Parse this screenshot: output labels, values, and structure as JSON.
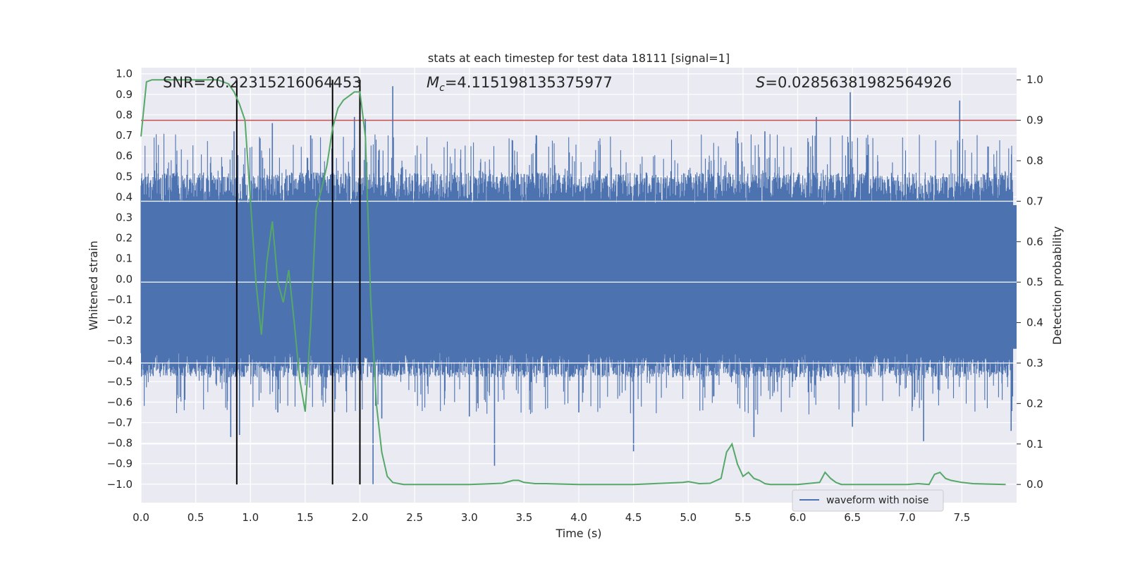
{
  "chart_data": {
    "type": "line",
    "title": "stats at each timestep for test data 18111 [signal=1]",
    "xlabel": "Time (s)",
    "ylabel": "Whitened strain",
    "y2label": "Detection probability",
    "xlim": [
      0.0,
      8.0
    ],
    "ylim": [
      -1.09,
      1.03
    ],
    "y2lim": [
      -0.045,
      1.03
    ],
    "xticks": [
      "0.0",
      "0.5",
      "1.0",
      "1.5",
      "2.0",
      "2.5",
      "3.0",
      "3.5",
      "4.0",
      "4.5",
      "5.0",
      "5.5",
      "6.0",
      "6.5",
      "7.0",
      "7.5"
    ],
    "yticks": [
      "1.0",
      "0.9",
      "0.8",
      "0.7",
      "0.6",
      "0.5",
      "0.4",
      "0.3",
      "0.2",
      "0.1",
      "0.0",
      "−0.1",
      "−0.2",
      "−0.3",
      "−0.4",
      "−0.5",
      "−0.6",
      "−0.7",
      "−0.8",
      "−0.9",
      "−1.0"
    ],
    "y2ticks": [
      "1.0",
      "0.9",
      "0.8",
      "0.7",
      "0.6",
      "0.5",
      "0.4",
      "0.3",
      "0.2",
      "0.1",
      "0.0"
    ],
    "grid": true,
    "legend": {
      "entries": [
        "waveform with noise"
      ],
      "placement": "lower-center-right"
    },
    "annotations": {
      "snr": "SNR=20.22315216064453",
      "mc_symbol": "M",
      "mc_sub": "c",
      "mc_value": "=4.115198135375977",
      "s_symbol": "S",
      "s_value": "=0.02856381982564926"
    },
    "threshold": {
      "value": 0.9,
      "axis": "right",
      "color": "#c44e52"
    },
    "vlines": [
      0.875,
      1.75,
      2.0
    ],
    "series": [
      {
        "name": "waveform with noise",
        "axis": "left",
        "color": "#4c72b0",
        "envelope": {
          "typical_amplitude": 0.36,
          "max_positive": 0.94,
          "min_negative": -1.0
        },
        "spikes": [
          {
            "x": 0.85,
            "y": 0.72
          },
          {
            "x": 0.82,
            "y": -0.77
          },
          {
            "x": 0.9,
            "y": -0.76
          },
          {
            "x": 1.2,
            "y": 0.76
          },
          {
            "x": 1.25,
            "y": -0.65
          },
          {
            "x": 1.55,
            "y": 0.7
          },
          {
            "x": 1.95,
            "y": 0.79
          },
          {
            "x": 2.05,
            "y": 0.78
          },
          {
            "x": 2.12,
            "y": -1.0
          },
          {
            "x": 2.3,
            "y": 0.94
          },
          {
            "x": 2.2,
            "y": -0.68
          },
          {
            "x": 3.23,
            "y": -0.91
          },
          {
            "x": 4.5,
            "y": -0.84
          },
          {
            "x": 5.45,
            "y": 0.72
          },
          {
            "x": 5.6,
            "y": -0.77
          },
          {
            "x": 5.7,
            "y": 0.72
          },
          {
            "x": 6.17,
            "y": 0.79
          },
          {
            "x": 6.48,
            "y": 0.91
          },
          {
            "x": 6.5,
            "y": -0.72
          },
          {
            "x": 7.15,
            "y": -0.79
          },
          {
            "x": 7.48,
            "y": 0.87
          },
          {
            "x": 7.95,
            "y": -0.74
          },
          {
            "x": 3.0,
            "y": -0.67
          },
          {
            "x": 4.0,
            "y": -0.65
          }
        ]
      },
      {
        "name": "",
        "axis": "right",
        "color": "#55a868",
        "x": [
          0.0,
          0.05,
          0.1,
          0.2,
          0.3,
          0.4,
          0.5,
          0.6,
          0.7,
          0.8,
          0.85,
          0.9,
          0.95,
          1.0,
          1.05,
          1.1,
          1.15,
          1.2,
          1.25,
          1.3,
          1.35,
          1.4,
          1.45,
          1.5,
          1.55,
          1.6,
          1.65,
          1.7,
          1.75,
          1.8,
          1.85,
          1.9,
          1.95,
          2.0,
          2.05,
          2.1,
          2.15,
          2.2,
          2.25,
          2.3,
          2.4,
          2.5,
          3.0,
          3.3,
          3.4,
          3.45,
          3.5,
          3.6,
          3.7,
          4.0,
          4.5,
          4.95,
          5.0,
          5.1,
          5.2,
          5.3,
          5.35,
          5.4,
          5.45,
          5.5,
          5.55,
          5.6,
          5.65,
          5.7,
          5.75,
          6.0,
          6.2,
          6.25,
          6.3,
          6.35,
          6.4,
          6.6,
          7.0,
          7.1,
          7.2,
          7.25,
          7.3,
          7.35,
          7.4,
          7.5,
          7.6,
          7.9
        ],
        "y": [
          0.86,
          0.995,
          1.0,
          1.0,
          1.0,
          1.0,
          1.0,
          1.0,
          1.0,
          0.99,
          0.97,
          0.94,
          0.9,
          0.7,
          0.5,
          0.37,
          0.55,
          0.65,
          0.5,
          0.45,
          0.53,
          0.4,
          0.26,
          0.18,
          0.39,
          0.68,
          0.73,
          0.79,
          0.88,
          0.93,
          0.95,
          0.96,
          0.97,
          0.97,
          0.86,
          0.45,
          0.2,
          0.08,
          0.02,
          0.005,
          0.0,
          0.0,
          0.0,
          0.003,
          0.01,
          0.01,
          0.005,
          0.002,
          0.002,
          0.0,
          0.0,
          0.005,
          0.007,
          0.002,
          0.003,
          0.015,
          0.08,
          0.1,
          0.05,
          0.02,
          0.03,
          0.015,
          0.01,
          0.002,
          0.0,
          0.0,
          0.005,
          0.03,
          0.015,
          0.005,
          0.0,
          0.0,
          0.0,
          0.002,
          0.0,
          0.025,
          0.03,
          0.015,
          0.01,
          0.005,
          0.002,
          0.0
        ]
      }
    ]
  }
}
